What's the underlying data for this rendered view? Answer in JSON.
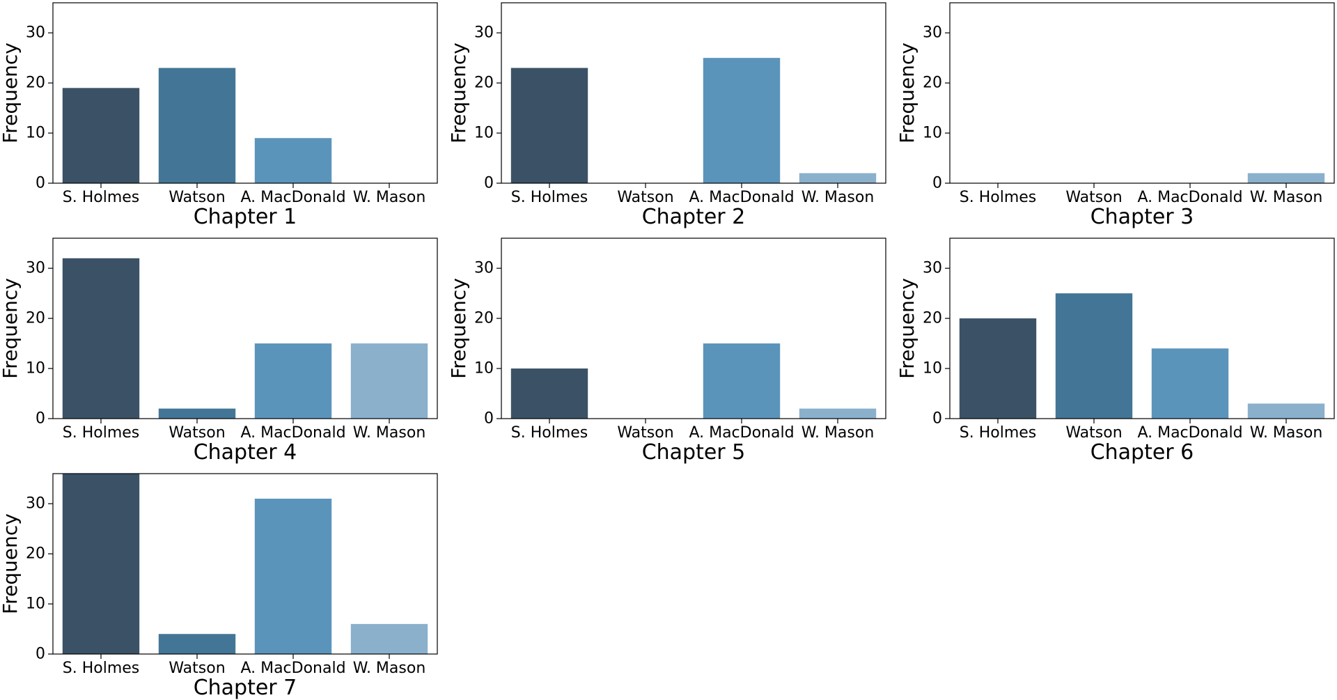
{
  "chart_data": [
    {
      "type": "bar",
      "xlabel": "Chapter 1",
      "ylabel": "Frequency",
      "categories": [
        "S. Holmes",
        "Watson",
        "A. MacDonald",
        "W. Mason"
      ],
      "values": [
        19,
        23,
        9,
        0
      ],
      "ylim": [
        0,
        36
      ],
      "yticks": [
        0,
        10,
        20,
        30
      ],
      "grid": false
    },
    {
      "type": "bar",
      "xlabel": "Chapter 2",
      "ylabel": "Frequency",
      "categories": [
        "S. Holmes",
        "Watson",
        "A. MacDonald",
        "W. Mason"
      ],
      "values": [
        23,
        0,
        25,
        2
      ],
      "ylim": [
        0,
        36
      ],
      "yticks": [
        0,
        10,
        20,
        30
      ],
      "grid": false
    },
    {
      "type": "bar",
      "xlabel": "Chapter 3",
      "ylabel": "Frequency",
      "categories": [
        "S. Holmes",
        "Watson",
        "A. MacDonald",
        "W. Mason"
      ],
      "values": [
        0,
        0,
        0,
        2
      ],
      "ylim": [
        0,
        36
      ],
      "yticks": [
        0,
        10,
        20,
        30
      ],
      "grid": false
    },
    {
      "type": "bar",
      "xlabel": "Chapter 4",
      "ylabel": "Frequency",
      "categories": [
        "S. Holmes",
        "Watson",
        "A. MacDonald",
        "W. Mason"
      ],
      "values": [
        32,
        2,
        15,
        15
      ],
      "ylim": [
        0,
        36
      ],
      "yticks": [
        0,
        10,
        20,
        30
      ],
      "grid": false
    },
    {
      "type": "bar",
      "xlabel": "Chapter 5",
      "ylabel": "Frequency",
      "categories": [
        "S. Holmes",
        "Watson",
        "A. MacDonald",
        "W. Mason"
      ],
      "values": [
        10,
        0,
        15,
        2
      ],
      "ylim": [
        0,
        36
      ],
      "yticks": [
        0,
        10,
        20,
        30
      ],
      "grid": false
    },
    {
      "type": "bar",
      "xlabel": "Chapter 6",
      "ylabel": "Frequency",
      "categories": [
        "S. Holmes",
        "Watson",
        "A. MacDonald",
        "W. Mason"
      ],
      "values": [
        20,
        25,
        14,
        3
      ],
      "ylim": [
        0,
        36
      ],
      "yticks": [
        0,
        10,
        20,
        30
      ],
      "grid": false
    },
    {
      "type": "bar",
      "xlabel": "Chapter 7",
      "ylabel": "Frequency",
      "categories": [
        "S. Holmes",
        "Watson",
        "A. MacDonald",
        "W. Mason"
      ],
      "values": [
        36,
        4,
        31,
        6
      ],
      "ylim": [
        0,
        36
      ],
      "yticks": [
        0,
        10,
        20,
        30
      ],
      "grid": false
    }
  ],
  "colors": {
    "S. Holmes": "#3b5266",
    "Watson": "#437696",
    "A. MacDonald": "#5b94bb",
    "W. Mason": "#8ab0cc"
  }
}
